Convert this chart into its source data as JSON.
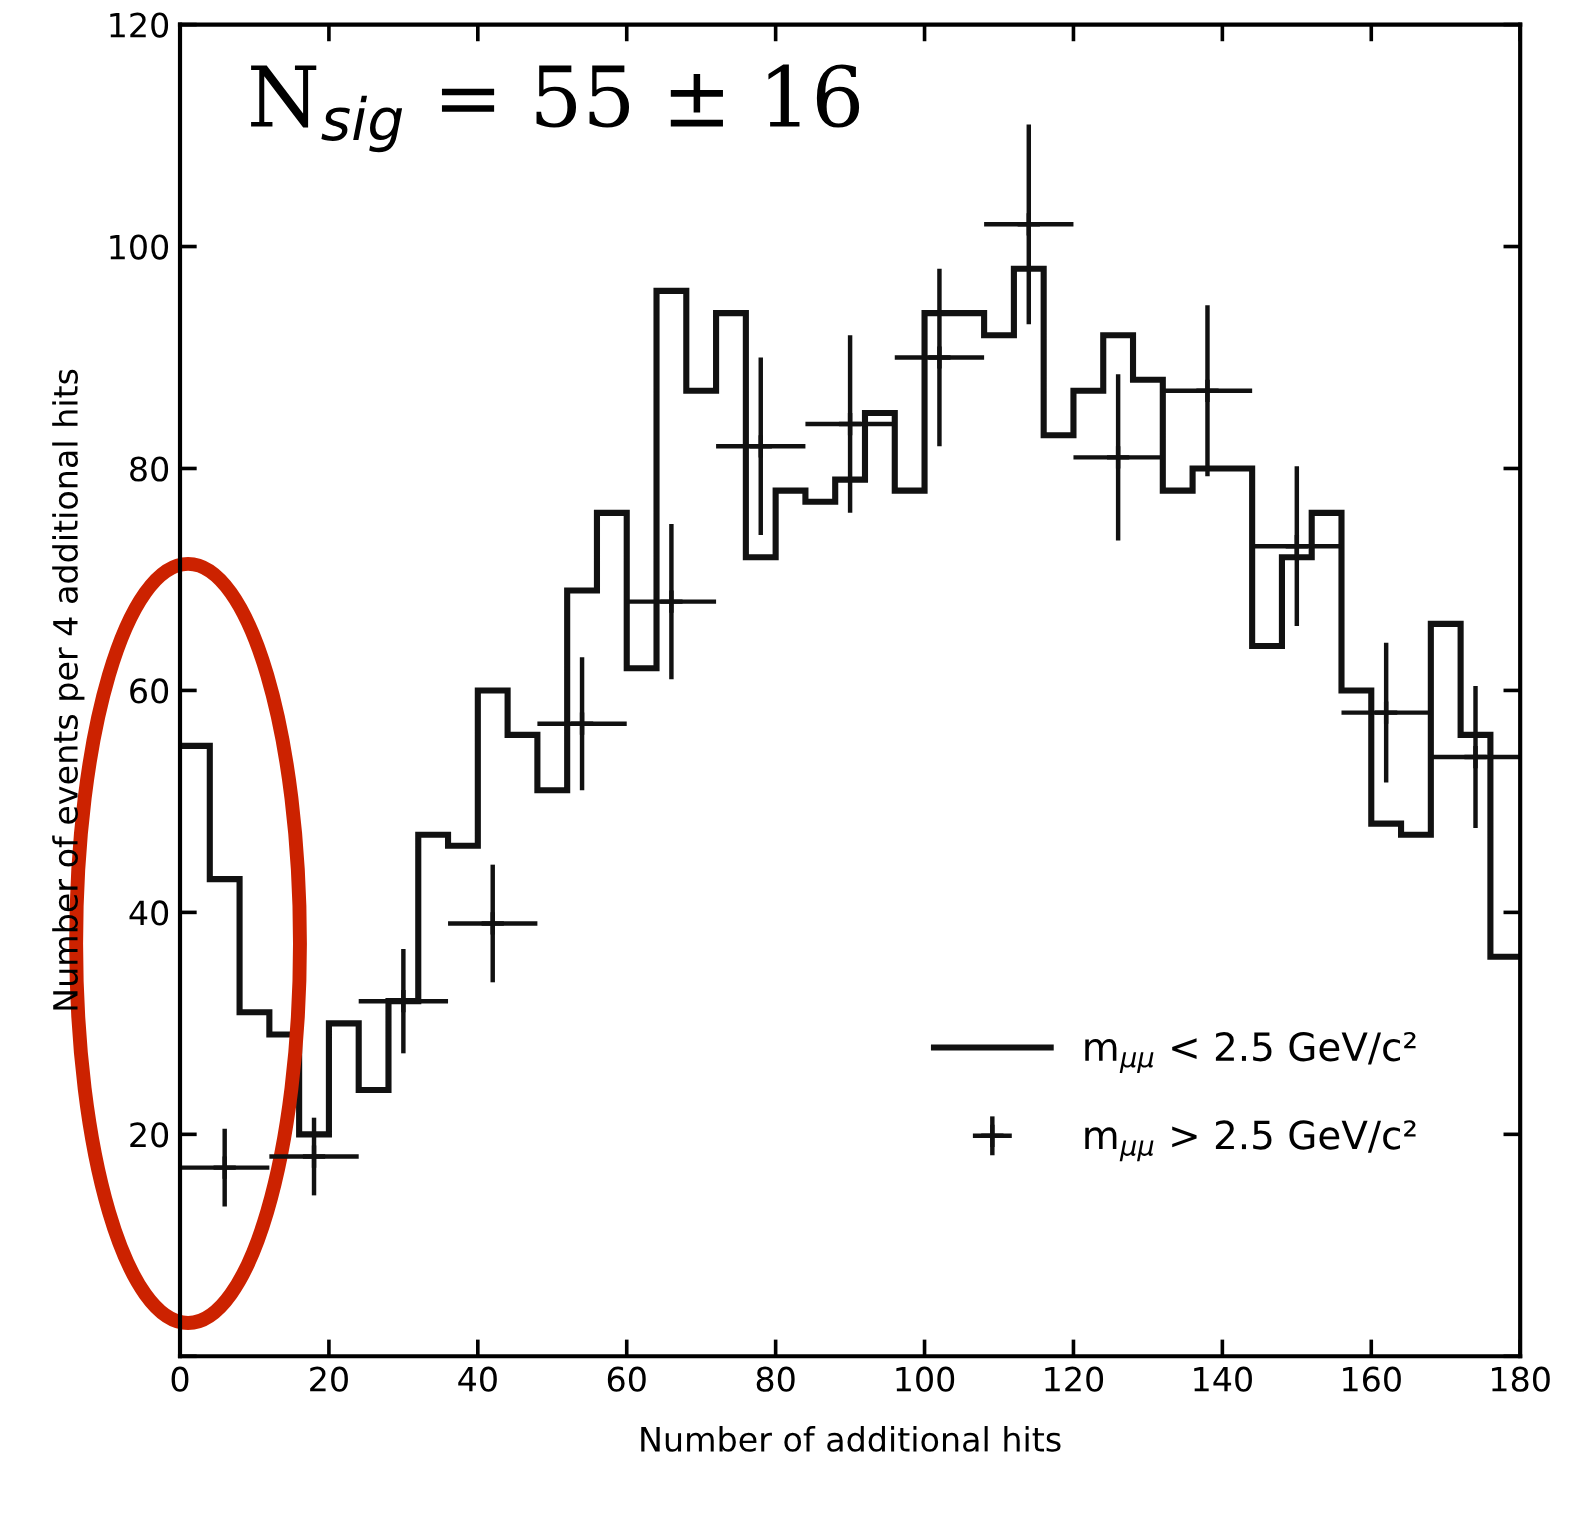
{
  "chart_data": {
    "type": "histogram",
    "xlabel": "Number of additional hits",
    "ylabel": "Number of events per 4 additional hits",
    "annotations": [
      "N$_{sig}$ = 55 ± 16"
    ],
    "bins": [
      0,
      4,
      8,
      12,
      16,
      20,
      24,
      28,
      32,
      36,
      40,
      44,
      48,
      52,
      56,
      60,
      64,
      68,
      72,
      76,
      80,
      84,
      88,
      92,
      96,
      100,
      104,
      108,
      112,
      116,
      120,
      124,
      128,
      132,
      136,
      140,
      144,
      148,
      152,
      156,
      160,
      164,
      168,
      172,
      176,
      180
    ],
    "series": [
      {
        "name": "m$_{μμ}$ < 2.5 GeV/c²",
        "color": "#111111",
        "values": [
          55,
          43,
          31,
          29,
          20,
          30,
          24,
          32,
          47,
          46,
          60,
          56,
          51,
          69,
          76,
          62,
          96,
          87,
          94,
          72,
          78,
          77,
          79,
          85,
          78,
          94,
          94,
          92,
          98,
          83,
          87,
          92,
          88,
          78,
          80,
          80,
          64,
          72,
          76,
          60,
          48,
          47,
          66,
          56,
          36
        ]
      },
      {
        "name": "m$_{μμ}$ > 2.5 GeV/c²",
        "type": "scatter",
        "color": "#111111",
        "marker": "cross",
        "x": [
          6,
          18,
          30,
          42,
          54,
          66,
          78,
          90,
          102,
          114,
          126,
          138,
          150,
          162,
          174
        ],
        "values": [
          17,
          18,
          32,
          39,
          57,
          68,
          82,
          84,
          90,
          102,
          81,
          87,
          73,
          58,
          54
        ],
        "errors": [
          3.5,
          3.5,
          4.7,
          5.3,
          6,
          7,
          8,
          8,
          8,
          9,
          7.5,
          7.7,
          7.2,
          6.3,
          6.4
        ],
        "xerrors": [
          6,
          6,
          6,
          6,
          6,
          6,
          6,
          6,
          6,
          6,
          6,
          6,
          6,
          6,
          6
        ]
      }
    ],
    "xlim": [
      0,
      180
    ],
    "ylim": [
      0,
      120
    ],
    "xticks": [
      0,
      20,
      40,
      60,
      80,
      100,
      120,
      140,
      160,
      180
    ],
    "yticks": [
      {
        "value": 0,
        "label": null
      },
      20,
      40,
      60,
      80,
      100,
      120
    ],
    "grid": false,
    "legend": "bottom right"
  }
}
